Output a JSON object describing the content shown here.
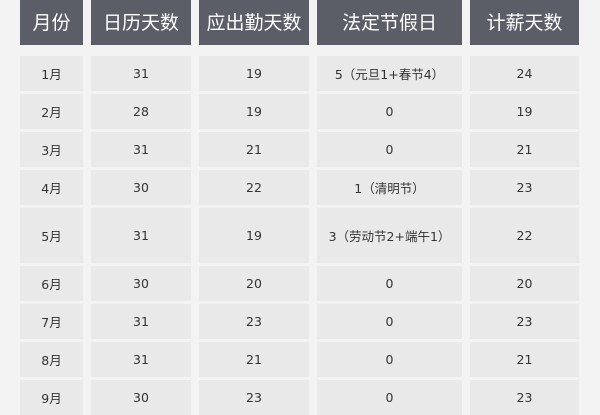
{
  "table": {
    "headers": [
      "月份",
      "日历天数",
      "应出勤天数",
      "法定节假日",
      "计薪天数"
    ],
    "rows": [
      [
        "1月",
        "31",
        "19",
        "5（元旦1+春节4）",
        "24"
      ],
      [
        "2月",
        "28",
        "19",
        "0",
        "19"
      ],
      [
        "3月",
        "31",
        "21",
        "0",
        "21"
      ],
      [
        "4月",
        "30",
        "22",
        "1（清明节）",
        "23"
      ],
      [
        "5月",
        "31",
        "19",
        "3（劳动节2+端午1）",
        "22"
      ],
      [
        "6月",
        "30",
        "20",
        "0",
        "20"
      ],
      [
        "7月",
        "31",
        "23",
        "0",
        "23"
      ],
      [
        "8月",
        "31",
        "21",
        "0",
        "21"
      ],
      [
        "9月",
        "30",
        "23",
        "0",
        "23"
      ]
    ]
  },
  "colors": {
    "header_bg": "#5b5d67",
    "cell_bg": "#e9e9ea",
    "page_bg": "#f3f3f3"
  }
}
